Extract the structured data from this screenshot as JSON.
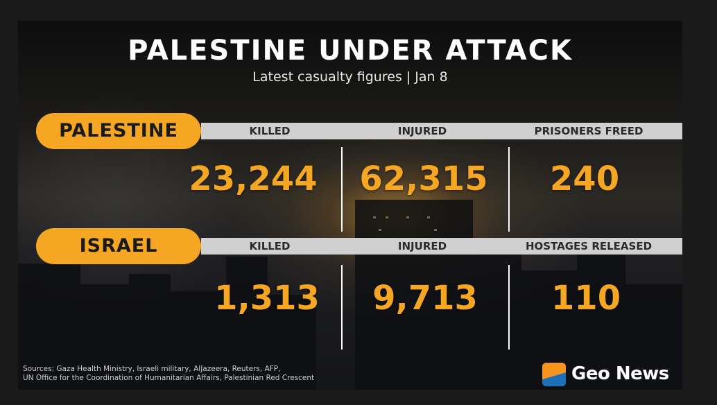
{
  "header": {
    "title": "PALESTINE UNDER ATTACK",
    "subtitle": "Latest casualty figures | Jan 8"
  },
  "palestine": {
    "label": "PALESTINE",
    "columns": [
      "KILLED",
      "INJURED",
      "PRISONERS FREED"
    ],
    "values": [
      "23,244",
      "62,315",
      "240"
    ]
  },
  "israel": {
    "label": "ISRAEL",
    "columns": [
      "KILLED",
      "INJURED",
      "HOSTAGES RELEASED"
    ],
    "values": [
      "1,313",
      "9,713",
      "110"
    ]
  },
  "footer": {
    "sources_line1": "Sources: Gaza Health Ministry, Israeli military, AlJazeera, Reuters, AFP,",
    "sources_line2": "UN Office for the Coordination of Humanitarian Affairs, Palestinian Red Crescent",
    "brand": "Geo News"
  },
  "colors": {
    "accent": "#f5a623",
    "band": "#d0d0d0",
    "background": "#1a1a1a",
    "brand_orange": "#f7941d",
    "brand_blue": "#1d6fb8"
  }
}
